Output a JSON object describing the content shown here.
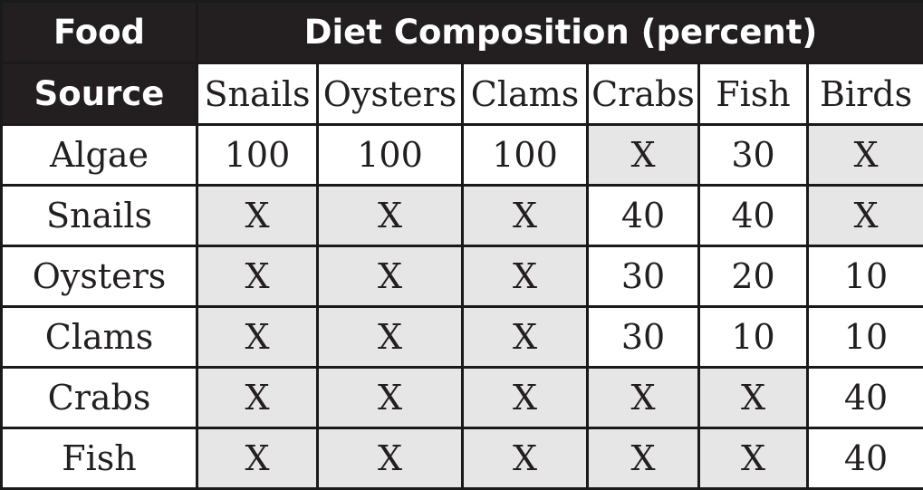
{
  "table": {
    "food_source_header_line1": "Food",
    "food_source_header_line2": "Source",
    "diet_header": "Diet Composition (percent)",
    "columns": [
      "Snails",
      "Oysters",
      "Clams",
      "Crabs",
      "Fish",
      "Birds"
    ],
    "rows": [
      {
        "label": "Algae",
        "values": [
          "100",
          "100",
          "100",
          "X",
          "30",
          "X"
        ]
      },
      {
        "label": "Snails",
        "values": [
          "X",
          "X",
          "X",
          "40",
          "40",
          "X"
        ]
      },
      {
        "label": "Oysters",
        "values": [
          "X",
          "X",
          "X",
          "30",
          "20",
          "10"
        ]
      },
      {
        "label": "Clams",
        "values": [
          "X",
          "X",
          "X",
          "30",
          "10",
          "10"
        ]
      },
      {
        "label": "Crabs",
        "values": [
          "X",
          "X",
          "X",
          "X",
          "X",
          "40"
        ]
      },
      {
        "label": "Fish",
        "values": [
          "X",
          "X",
          "X",
          "X",
          "X",
          "40"
        ]
      }
    ]
  },
  "colors": {
    "header_bg": "#231f20",
    "not_applicable_bg": "#e6e6e6",
    "cell_bg": "#ffffff"
  }
}
